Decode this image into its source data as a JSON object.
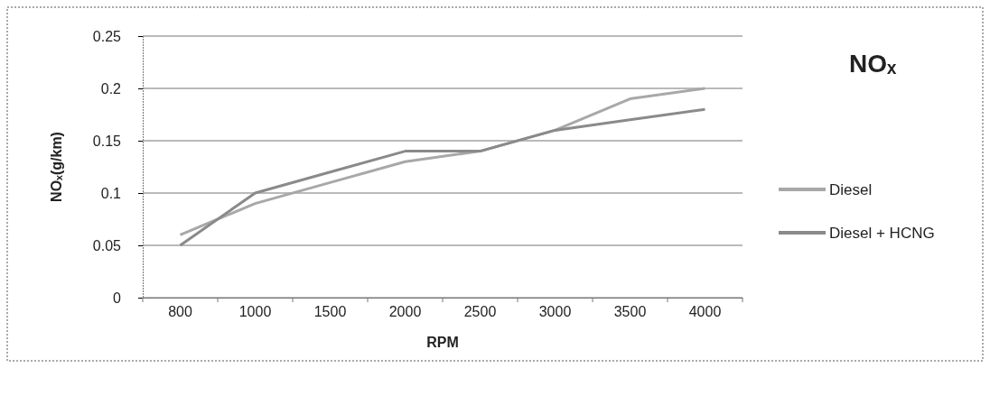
{
  "chart_data": {
    "type": "line",
    "title": "NOₓ",
    "xlabel": "RPM",
    "ylabel": "NOₓ(g/km)",
    "categories": [
      "800",
      "1000",
      "1500",
      "2000",
      "2500",
      "3000",
      "3500",
      "4000"
    ],
    "series": [
      {
        "name": "Diesel",
        "color": "#a8a8a8",
        "values": [
          0.06,
          0.09,
          0.11,
          0.13,
          0.14,
          0.16,
          0.19,
          0.2
        ]
      },
      {
        "name": "Diesel + HCNG",
        "color": "#8a8a8a",
        "values": [
          0.05,
          0.1,
          0.12,
          0.14,
          0.14,
          0.16,
          0.17,
          0.18
        ]
      }
    ],
    "ylim": [
      0,
      0.25
    ],
    "yticks": [
      0,
      0.05,
      0.1,
      0.15,
      0.2,
      0.25
    ],
    "grid": "y",
    "legend": "right",
    "marker": "none",
    "line_style": "solid"
  }
}
